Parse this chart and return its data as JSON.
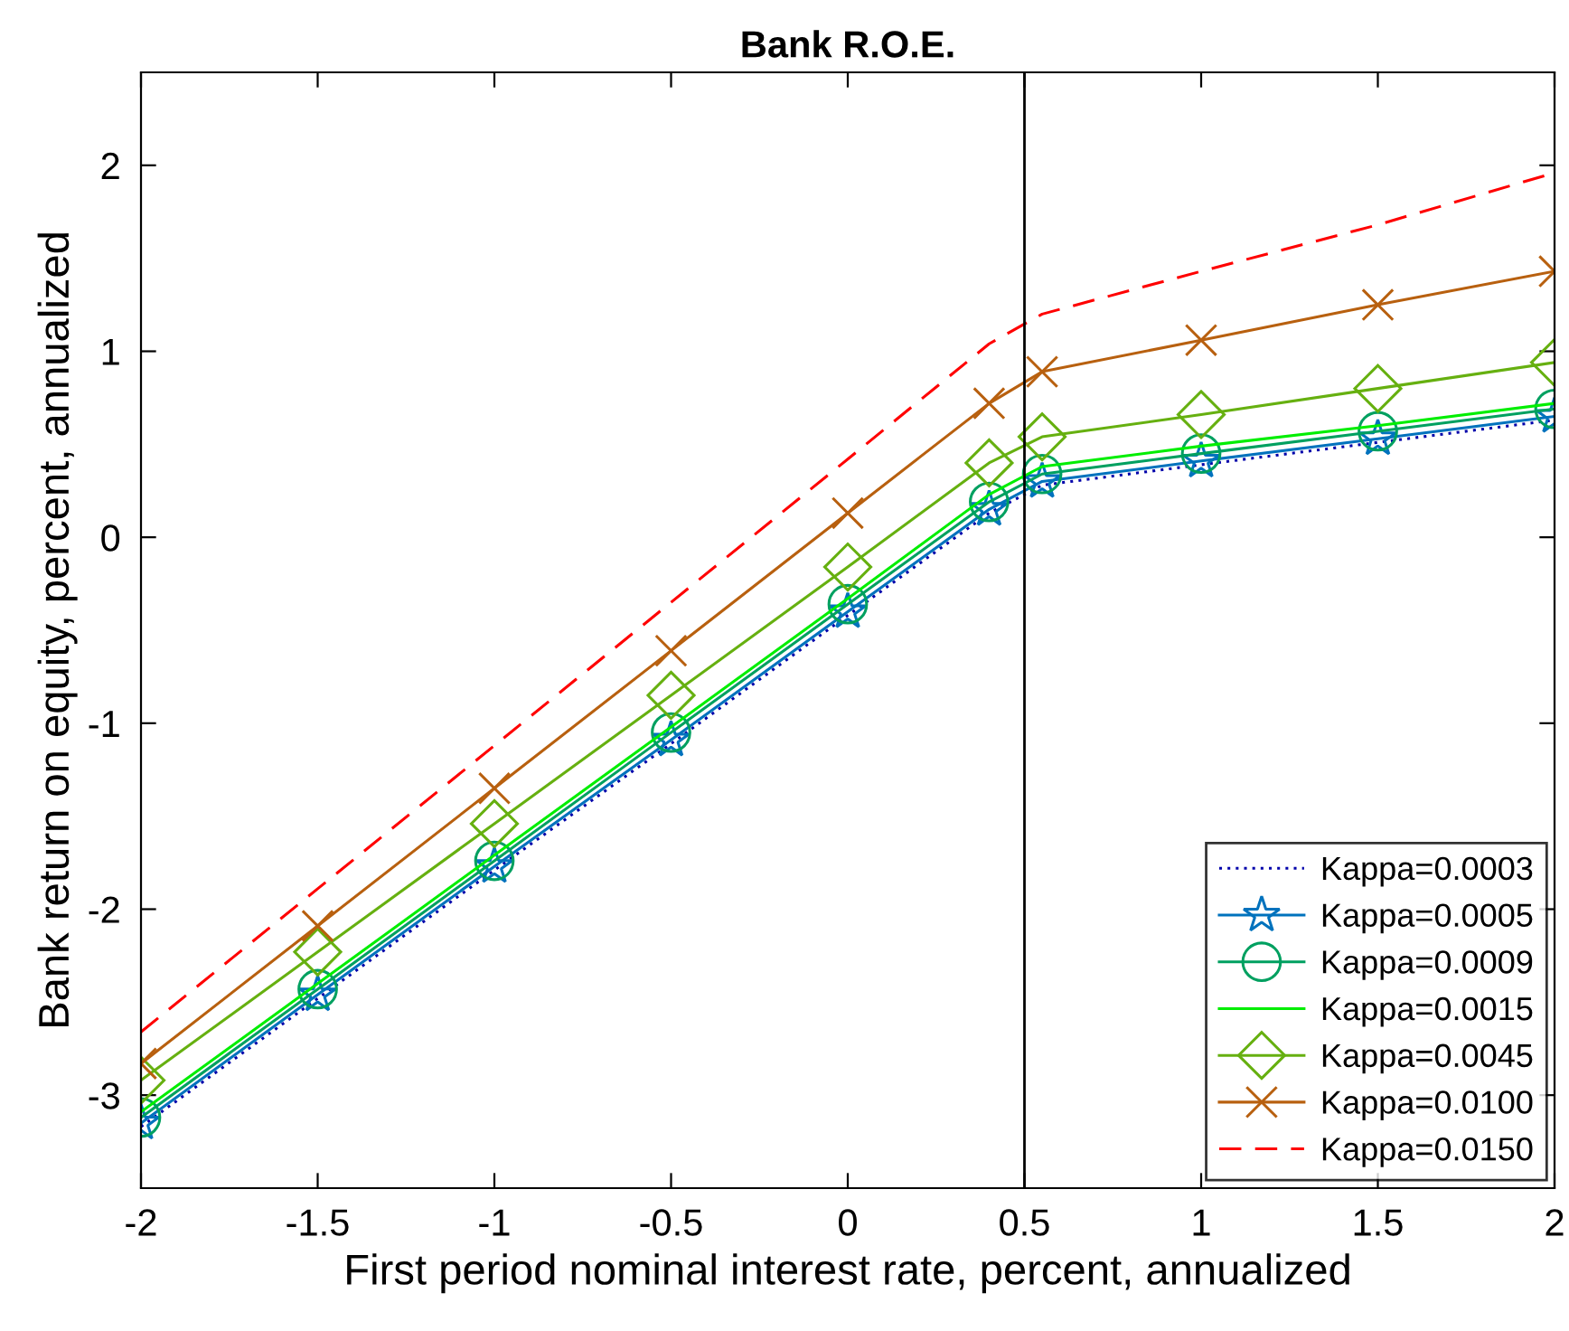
{
  "chart_data": {
    "type": "line",
    "title": "Bank R.O.E.",
    "xlabel": "First period nominal interest rate, percent, annualized",
    "ylabel": "Bank return on equity, percent, annualized",
    "x": [
      -2,
      -1.5,
      -1,
      -0.5,
      0,
      0.4,
      0.55,
      1,
      1.5,
      2
    ],
    "series": [
      {
        "name": "Kappa=0.0003",
        "color": "#0000aa",
        "marker": "none",
        "line_style": "dotted",
        "values": [
          -3.17,
          -2.48,
          -1.79,
          -1.11,
          -0.42,
          0.13,
          0.28,
          0.39,
          0.51,
          0.63
        ]
      },
      {
        "name": "Kappa=0.0005",
        "color": "#0072bd",
        "marker": "star",
        "line_style": "solid",
        "values": [
          -3.15,
          -2.46,
          -1.77,
          -1.09,
          -0.4,
          0.15,
          0.3,
          0.41,
          0.53,
          0.65
        ]
      },
      {
        "name": "Kappa=0.0009",
        "color": "#00a060",
        "marker": "circle",
        "line_style": "solid",
        "values": [
          -3.12,
          -2.43,
          -1.74,
          -1.05,
          -0.36,
          0.19,
          0.34,
          0.45,
          0.57,
          0.69
        ]
      },
      {
        "name": "Kappa=0.0015",
        "color": "#00ee00",
        "marker": "none",
        "line_style": "solid",
        "values": [
          -3.09,
          -2.4,
          -1.71,
          -1.02,
          -0.33,
          0.23,
          0.38,
          0.49,
          0.6,
          0.72
        ]
      },
      {
        "name": "Kappa=0.0045",
        "color": "#66b010",
        "marker": "diamond",
        "line_style": "solid",
        "values": [
          -2.92,
          -2.23,
          -1.54,
          -0.85,
          -0.16,
          0.4,
          0.54,
          0.66,
          0.8,
          0.94
        ]
      },
      {
        "name": "Kappa=0.0100",
        "color": "#b8600f",
        "marker": "cross",
        "line_style": "solid",
        "values": [
          -2.83,
          -2.09,
          -1.35,
          -0.61,
          0.13,
          0.72,
          0.89,
          1.06,
          1.25,
          1.43
        ]
      },
      {
        "name": "Kappa=0.0150",
        "color": "#ff0000",
        "marker": "none",
        "line_style": "dashed",
        "values": [
          -2.66,
          -1.89,
          -1.12,
          -0.35,
          0.42,
          1.04,
          1.2,
          1.43,
          1.68,
          1.96
        ]
      }
    ],
    "xlim": [
      -2,
      2
    ],
    "ylim": [
      -3.5,
      2.5
    ],
    "xticks": [
      -2,
      -1.5,
      -1,
      -0.5,
      0,
      0.5,
      1,
      1.5,
      2
    ],
    "yticks": [
      -3,
      -2,
      -1,
      0,
      1,
      2
    ],
    "ref_lines": [
      {
        "axis": "x",
        "value": 0.5,
        "color": "#000000"
      }
    ],
    "grid": false,
    "legend": "bottom right"
  }
}
